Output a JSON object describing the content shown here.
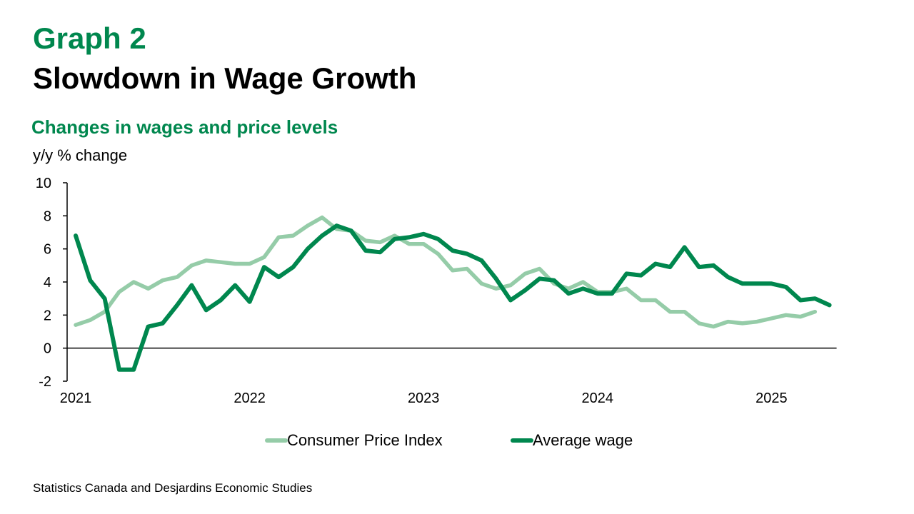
{
  "header": {
    "graph_number": "Graph 2",
    "title": "Slowdown in Wage Growth"
  },
  "source": "Statistics Canada and Desjardins Economic Studies",
  "colors": {
    "accent": "#00874E",
    "cpi": "#95CCA8",
    "wage": "#00874E"
  },
  "chart_data": {
    "type": "line",
    "subtitle": "Changes in wages and price levels",
    "ylabel": "y/y % change",
    "xlabel": "",
    "ylim": [
      -2,
      10
    ],
    "y_ticks": [
      -2,
      0,
      2,
      4,
      6,
      8,
      10
    ],
    "x_tick_labels": [
      "2021",
      "2022",
      "2023",
      "2024",
      "2025"
    ],
    "x_start": "2021-01",
    "x_end": "2025-05",
    "grid": false,
    "legend_position": "bottom",
    "series": [
      {
        "name": "Consumer Price Index",
        "color": "#95CCA8",
        "start": "2021-01",
        "values": [
          1.4,
          1.7,
          2.2,
          3.4,
          4.0,
          3.6,
          4.1,
          4.3,
          5.0,
          5.3,
          5.2,
          5.1,
          5.1,
          5.5,
          6.7,
          6.8,
          7.4,
          7.9,
          7.2,
          7.1,
          6.5,
          6.4,
          6.8,
          6.3,
          6.3,
          5.7,
          4.7,
          4.8,
          3.9,
          3.6,
          3.8,
          4.5,
          4.8,
          3.9,
          3.6,
          4.0,
          3.4,
          3.4,
          3.6,
          2.9,
          2.9,
          2.2,
          2.2,
          1.5,
          1.3,
          1.6,
          1.5,
          1.6,
          1.8,
          2.0,
          1.9,
          2.2
        ]
      },
      {
        "name": "Average wage",
        "color": "#00874E",
        "start": "2021-01",
        "values": [
          6.8,
          4.1,
          3.0,
          -1.3,
          -1.3,
          1.3,
          1.5,
          2.6,
          3.8,
          2.3,
          2.9,
          3.8,
          2.8,
          4.9,
          4.3,
          4.9,
          6.0,
          6.8,
          7.4,
          7.1,
          5.9,
          5.8,
          6.6,
          6.7,
          6.9,
          6.6,
          5.9,
          5.7,
          5.3,
          4.2,
          2.9,
          3.5,
          4.2,
          4.1,
          3.3,
          3.6,
          3.3,
          3.3,
          4.5,
          4.4,
          5.1,
          4.9,
          6.1,
          4.9,
          5.0,
          4.3,
          3.9,
          3.9,
          3.9,
          3.7,
          2.9,
          3.0,
          2.6
        ]
      }
    ]
  }
}
